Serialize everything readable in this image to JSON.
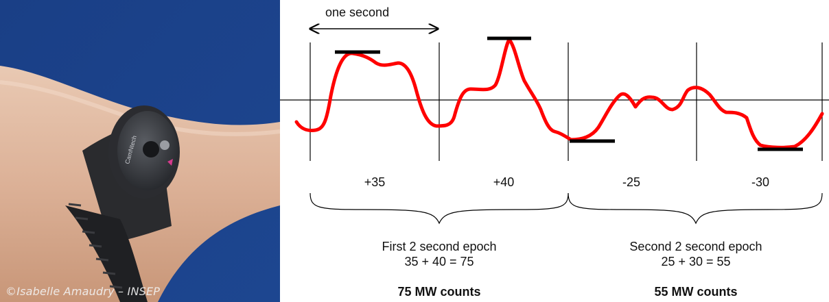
{
  "photo": {
    "credit": "©Isabelle Amaudry – INSEP",
    "device_brand_text": "CamNtech"
  },
  "diagram": {
    "scale_label": "one second",
    "second_values": [
      "+35",
      "+40",
      "-25",
      "-30"
    ],
    "epochs": [
      {
        "title": "First 2 second epoch",
        "sum": "35 + 40 = 75",
        "result": "75 MW counts"
      },
      {
        "title": "Second 2 second epoch",
        "sum": "25 + 30 = 55",
        "result": "55 MW counts"
      }
    ],
    "colors": {
      "signal": "#ff0000",
      "lines": "#000000"
    }
  }
}
